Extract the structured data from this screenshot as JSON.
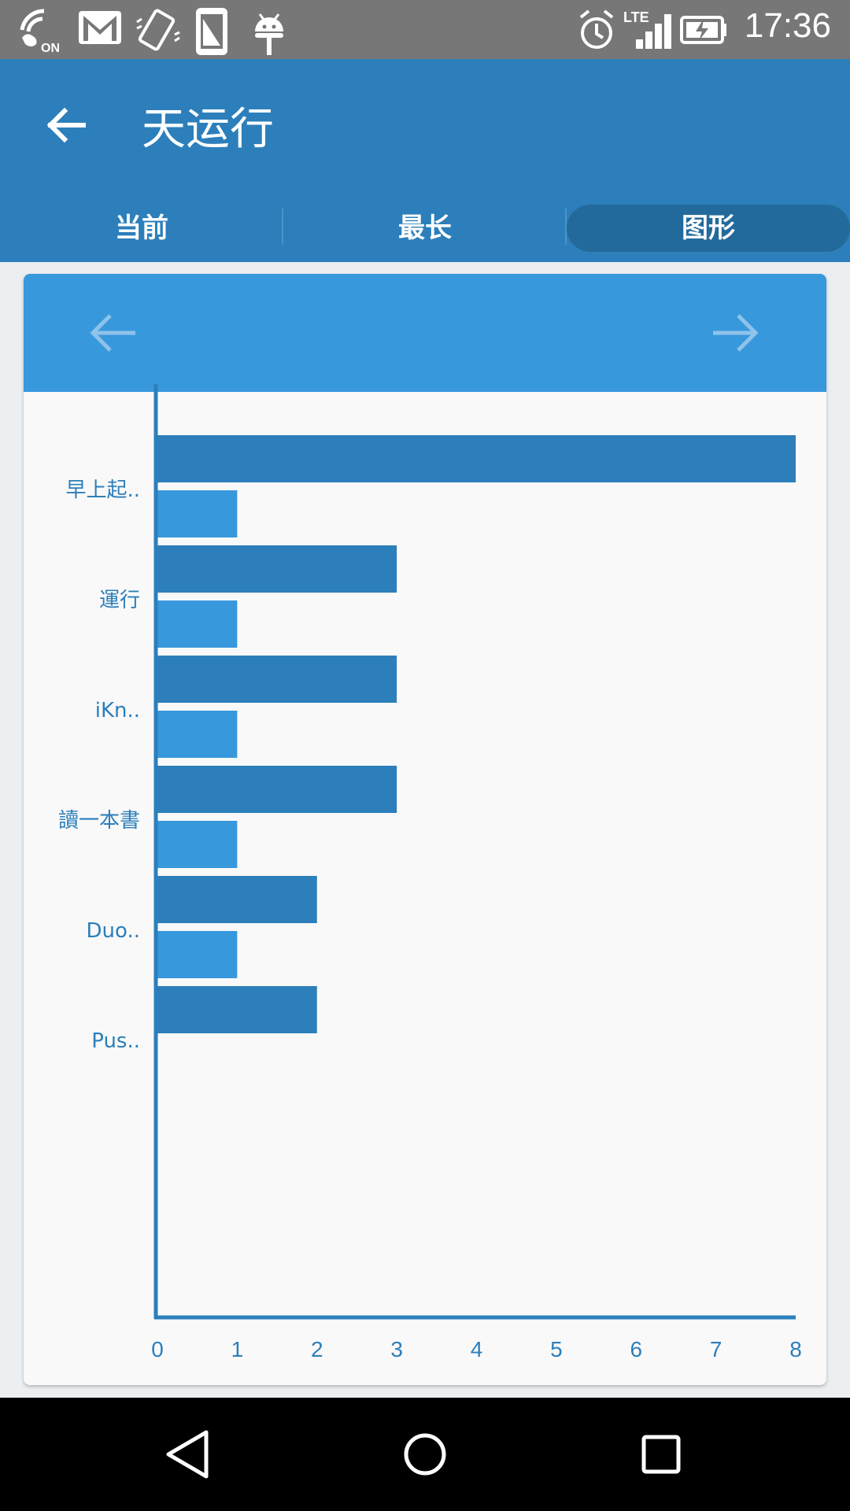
{
  "status_bar": {
    "time": "17:36",
    "icons": [
      "wifi-calling-on-icon",
      "gmail-icon",
      "vibrate-icon",
      "phone-icon",
      "android-icon",
      "alarm-icon",
      "lte-signal-icon",
      "battery-charging-icon"
    ],
    "lte_label": "LTE",
    "on_label": "ON"
  },
  "app_bar": {
    "title": "天运行",
    "back_icon": "arrow-left-icon"
  },
  "tabs": [
    {
      "label": "当前"
    },
    {
      "label": "最长"
    },
    {
      "label": "图形",
      "selected": true
    }
  ],
  "card": {
    "prev_icon": "arrow-left-icon",
    "next_icon": "arrow-right-icon"
  },
  "colors": {
    "primary": "#2c7fba",
    "primary_dark": "#236a9c",
    "header_light": "#3898dc",
    "bar_dark": "#2c7fba",
    "bar_light": "#3898dc",
    "axis": "#2c7fba",
    "label": "#2c7fba"
  },
  "chart_data": {
    "type": "bar",
    "orientation": "horizontal",
    "categories": [
      "早上起..",
      "運行",
      "iKn..",
      "讀一本書",
      "Duo..",
      "Pus.."
    ],
    "series": [
      {
        "values": [
          8,
          3,
          3,
          3,
          2,
          2
        ],
        "color": "#2c7fba"
      },
      {
        "values": [
          1,
          1,
          1,
          1,
          1,
          null
        ],
        "color": "#3898dc"
      }
    ],
    "x_ticks": [
      "0",
      "1",
      "2",
      "3",
      "4",
      "5",
      "6",
      "7",
      "8"
    ],
    "xlim": [
      0,
      8
    ],
    "grid": false,
    "legend": "none"
  },
  "nav_bar": {
    "icons": [
      "back-triangle-icon",
      "home-circle-icon",
      "recents-square-icon"
    ]
  }
}
